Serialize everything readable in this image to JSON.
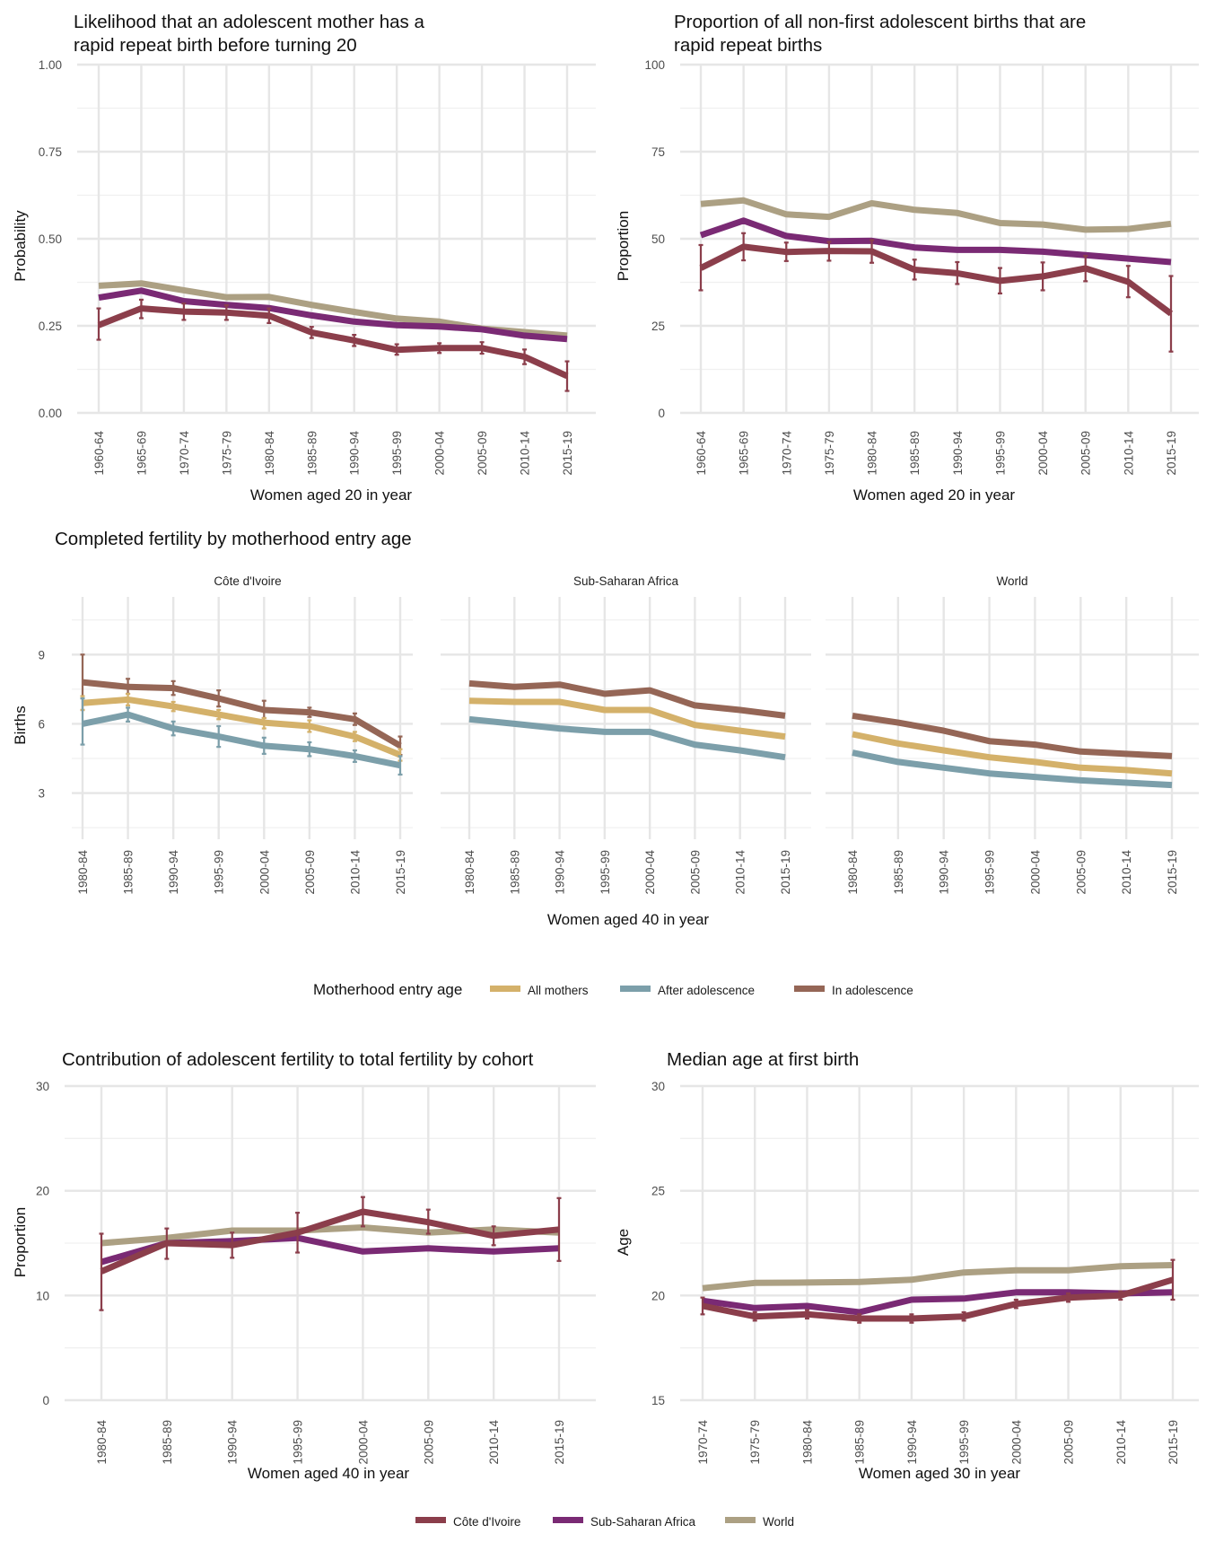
{
  "colors": {
    "cote_divoire": "#8b3e4b",
    "sub_saharan_africa": "#7a2a74",
    "world": "#aca083",
    "all_mothers": "#d4b16a",
    "after_adolescence": "#7c9faa",
    "in_adolescence": "#956656",
    "grid": "#e6e6e6"
  },
  "legend_bottom": {
    "items": [
      {
        "label": "Côte d'Ivoire",
        "color": "#8b3e4b"
      },
      {
        "label": "Sub-Saharan Africa",
        "color": "#7a2a74"
      },
      {
        "label": "World",
        "color": "#aca083"
      }
    ],
    "placement": "bottom"
  },
  "legend_middle": {
    "title": "Motherhood entry age",
    "items": [
      {
        "label": "All mothers",
        "color": "#d4b16a"
      },
      {
        "label": "After adolescence",
        "color": "#7c9faa"
      },
      {
        "label": "In adolescence",
        "color": "#956656"
      }
    ],
    "placement": "bottom"
  },
  "chart_data": [
    {
      "id": "rapid-repeat-likelihood",
      "type": "line",
      "title_lines": [
        "Likelihood that an adolescent mother has a",
        "rapid repeat birth before turning 20"
      ],
      "xlabel": "Women aged 20 in year",
      "ylabel": "Probability",
      "ylim": [
        0,
        1
      ],
      "yticks": [
        "0.00",
        "0.25",
        "0.50",
        "0.75",
        "1.00"
      ],
      "categories": [
        "1960-64",
        "1965-69",
        "1970-74",
        "1975-79",
        "1980-84",
        "1985-89",
        "1990-94",
        "1995-99",
        "2000-04",
        "2005-09",
        "2010-14",
        "2015-19"
      ],
      "grid": true,
      "series": [
        {
          "name": "World",
          "color": "#aca083",
          "values": [
            0.365,
            0.372,
            0.352,
            0.332,
            0.333,
            0.31,
            0.29,
            0.271,
            0.262,
            0.242,
            0.232,
            0.222
          ]
        },
        {
          "name": "Sub-Saharan Africa",
          "color": "#7a2a74",
          "values": [
            0.331,
            0.351,
            0.321,
            0.31,
            0.301,
            0.28,
            0.262,
            0.252,
            0.248,
            0.24,
            0.222,
            0.212
          ]
        },
        {
          "name": "Côte d'Ivoire",
          "color": "#8b3e4b",
          "values": [
            0.252,
            0.3,
            0.291,
            0.288,
            0.279,
            0.231,
            0.208,
            0.181,
            0.186,
            0.186,
            0.161,
            0.106
          ],
          "lower": [
            0.21,
            0.272,
            0.267,
            0.267,
            0.258,
            0.215,
            0.192,
            0.167,
            0.172,
            0.17,
            0.14,
            0.063
          ],
          "upper": [
            0.3,
            0.325,
            0.314,
            0.309,
            0.3,
            0.247,
            0.224,
            0.197,
            0.2,
            0.203,
            0.182,
            0.148
          ]
        }
      ]
    },
    {
      "id": "rapid-repeat-proportion",
      "type": "line",
      "title_lines": [
        "Proportion of all non-first adolescent births that are",
        "rapid repeat births"
      ],
      "xlabel": "Women aged 20 in year",
      "ylabel": "Proportion",
      "ylim": [
        0,
        100
      ],
      "yticks": [
        "0",
        "25",
        "50",
        "75",
        "100"
      ],
      "categories": [
        "1960-64",
        "1965-69",
        "1970-74",
        "1975-79",
        "1980-84",
        "1985-89",
        "1990-94",
        "1995-99",
        "2000-04",
        "2005-09",
        "2010-14",
        "2015-19"
      ],
      "grid": true,
      "series": [
        {
          "name": "World",
          "color": "#aca083",
          "values": [
            60,
            61,
            57,
            56.3,
            60.2,
            58.3,
            57.4,
            54.5,
            54.1,
            52.6,
            52.8,
            54.3
          ]
        },
        {
          "name": "Sub-Saharan Africa",
          "color": "#7a2a74",
          "values": [
            51,
            55.2,
            50.8,
            49.3,
            49.4,
            47.5,
            46.8,
            46.8,
            46.3,
            45.3,
            44.3,
            43.3
          ]
        },
        {
          "name": "Côte d'Ivoire",
          "color": "#8b3e4b",
          "values": [
            41.6,
            47.7,
            46.2,
            46.5,
            46.4,
            41.1,
            40.1,
            37.9,
            39.2,
            41.5,
            37.6,
            28.5
          ],
          "lower": [
            35.2,
            43.8,
            43.6,
            43.7,
            43.1,
            38.3,
            37,
            34.3,
            35.2,
            37.8,
            33.2,
            17.6
          ],
          "upper": [
            48.2,
            51.6,
            48.9,
            49.1,
            49.6,
            44,
            43.3,
            41.6,
            43.2,
            45.1,
            42.2,
            39.3
          ]
        }
      ]
    },
    {
      "id": "completed-fertility",
      "type": "line",
      "title": "Completed fertility by motherhood entry age",
      "xlabel": "Women aged 40 in year",
      "ylabel": "Births",
      "ylim": [
        1,
        11.5
      ],
      "yticks": [
        "3",
        "6",
        "9"
      ],
      "categories": [
        "1980-84",
        "1985-89",
        "1990-94",
        "1995-99",
        "2000-04",
        "2005-09",
        "2010-14",
        "2015-19"
      ],
      "grid": true,
      "facets": [
        {
          "title": "Côte d'Ivoire",
          "series": [
            {
              "name": "In adolescence",
              "color": "#956656",
              "values": [
                7.8,
                7.6,
                7.55,
                7.1,
                6.6,
                6.5,
                6.2,
                5.05
              ],
              "lower": [
                6.6,
                7.3,
                7.25,
                6.75,
                6.25,
                6.3,
                5.95,
                4.65
              ],
              "upper": [
                9,
                7.95,
                7.85,
                7.45,
                7,
                6.7,
                6.45,
                5.45
              ]
            },
            {
              "name": "All mothers",
              "color": "#d4b16a",
              "values": [
                6.9,
                7.05,
                6.75,
                6.4,
                6.05,
                5.9,
                5.45,
                4.65
              ],
              "lower": [
                6.6,
                6.8,
                6.55,
                6.2,
                5.8,
                5.65,
                5.25,
                4.4
              ],
              "upper": [
                7.2,
                7.3,
                6.95,
                6.6,
                6.25,
                6.15,
                5.65,
                4.9
              ]
            },
            {
              "name": "After adolescence",
              "color": "#7c9faa",
              "values": [
                6,
                6.4,
                5.8,
                5.45,
                5.05,
                4.9,
                4.6,
                4.2
              ],
              "lower": [
                5.1,
                6.1,
                5.5,
                5,
                4.7,
                4.6,
                4.35,
                3.8
              ],
              "upper": [
                7.1,
                6.7,
                6.1,
                5.9,
                5.4,
                5.2,
                4.85,
                4.6
              ]
            }
          ]
        },
        {
          "title": "Sub-Saharan Africa",
          "series": [
            {
              "name": "In adolescence",
              "color": "#956656",
              "values": [
                7.75,
                7.6,
                7.7,
                7.3,
                7.45,
                6.8,
                6.6,
                6.35
              ]
            },
            {
              "name": "All mothers",
              "color": "#d4b16a",
              "values": [
                7,
                6.95,
                6.95,
                6.6,
                6.6,
                5.95,
                5.7,
                5.45
              ]
            },
            {
              "name": "After adolescence",
              "color": "#7c9faa",
              "values": [
                6.2,
                6,
                5.8,
                5.65,
                5.65,
                5.1,
                4.85,
                4.55
              ]
            }
          ]
        },
        {
          "title": "World",
          "series": [
            {
              "name": "In adolescence",
              "color": "#956656",
              "values": [
                6.35,
                6.05,
                5.7,
                5.25,
                5.1,
                4.8,
                4.7,
                4.6
              ]
            },
            {
              "name": "All mothers",
              "color": "#d4b16a",
              "values": [
                5.55,
                5.15,
                4.85,
                4.55,
                4.35,
                4.1,
                4,
                3.85
              ]
            },
            {
              "name": "After adolescence",
              "color": "#7c9faa",
              "values": [
                4.75,
                4.35,
                4.1,
                3.85,
                3.7,
                3.55,
                3.45,
                3.35
              ]
            }
          ]
        }
      ]
    },
    {
      "id": "adolescent-contribution",
      "type": "line",
      "title": "Contribution of adolescent fertility to total fertility by cohort",
      "xlabel": "Women aged 40 in year",
      "ylabel": "Proportion",
      "ylim": [
        0,
        30
      ],
      "yticks": [
        "0",
        "10",
        "20",
        "30"
      ],
      "categories": [
        "1980-84",
        "1985-89",
        "1990-94",
        "1995-99",
        "2000-04",
        "2005-09",
        "2010-14",
        "2015-19"
      ],
      "grid": true,
      "series": [
        {
          "name": "World",
          "color": "#aca083",
          "values": [
            15,
            15.5,
            16.2,
            16.2,
            16.5,
            16,
            16.3,
            16
          ]
        },
        {
          "name": "Sub-Saharan Africa",
          "color": "#7a2a74",
          "values": [
            13.2,
            15,
            15.2,
            15.5,
            14.2,
            14.5,
            14.2,
            14.5
          ]
        },
        {
          "name": "Côte d'Ivoire",
          "color": "#8b3e4b",
          "values": [
            12.3,
            15,
            14.8,
            16,
            18,
            17,
            15.7,
            16.3
          ],
          "lower": [
            8.6,
            13.5,
            13.6,
            14.1,
            16.6,
            15.9,
            14.8,
            13.3
          ],
          "upper": [
            15.9,
            16.4,
            16,
            17.9,
            19.4,
            18.2,
            16.6,
            19.3
          ]
        }
      ]
    },
    {
      "id": "median-age-first-birth",
      "type": "line",
      "title": "Median age at first birth",
      "xlabel": "Women aged 30 in year",
      "ylabel": "Age",
      "ylim": [
        15,
        30
      ],
      "yticks": [
        "15",
        "20",
        "25",
        "30"
      ],
      "categories": [
        "1970-74",
        "1975-79",
        "1980-84",
        "1985-89",
        "1990-94",
        "1995-99",
        "2000-04",
        "2005-09",
        "2010-14",
        "2015-19"
      ],
      "grid": true,
      "series": [
        {
          "name": "World",
          "color": "#aca083",
          "values": [
            20.35,
            20.6,
            20.62,
            20.65,
            20.75,
            21.1,
            21.2,
            21.2,
            21.4,
            21.45
          ]
        },
        {
          "name": "Sub-Saharan Africa",
          "color": "#7a2a74",
          "values": [
            19.75,
            19.4,
            19.5,
            19.2,
            19.8,
            19.85,
            20.15,
            20.15,
            20.1,
            20.15
          ]
        },
        {
          "name": "Côte d'Ivoire",
          "color": "#8b3e4b",
          "values": [
            19.5,
            19,
            19.1,
            18.9,
            18.9,
            19,
            19.6,
            19.9,
            20,
            20.75
          ],
          "lower": [
            19.1,
            18.8,
            18.9,
            18.7,
            18.7,
            18.8,
            19.4,
            19.7,
            19.8,
            19.8
          ],
          "upper": [
            19.9,
            19.2,
            19.3,
            19.1,
            19.1,
            19.2,
            19.8,
            20.1,
            20.2,
            21.7
          ]
        }
      ]
    }
  ]
}
